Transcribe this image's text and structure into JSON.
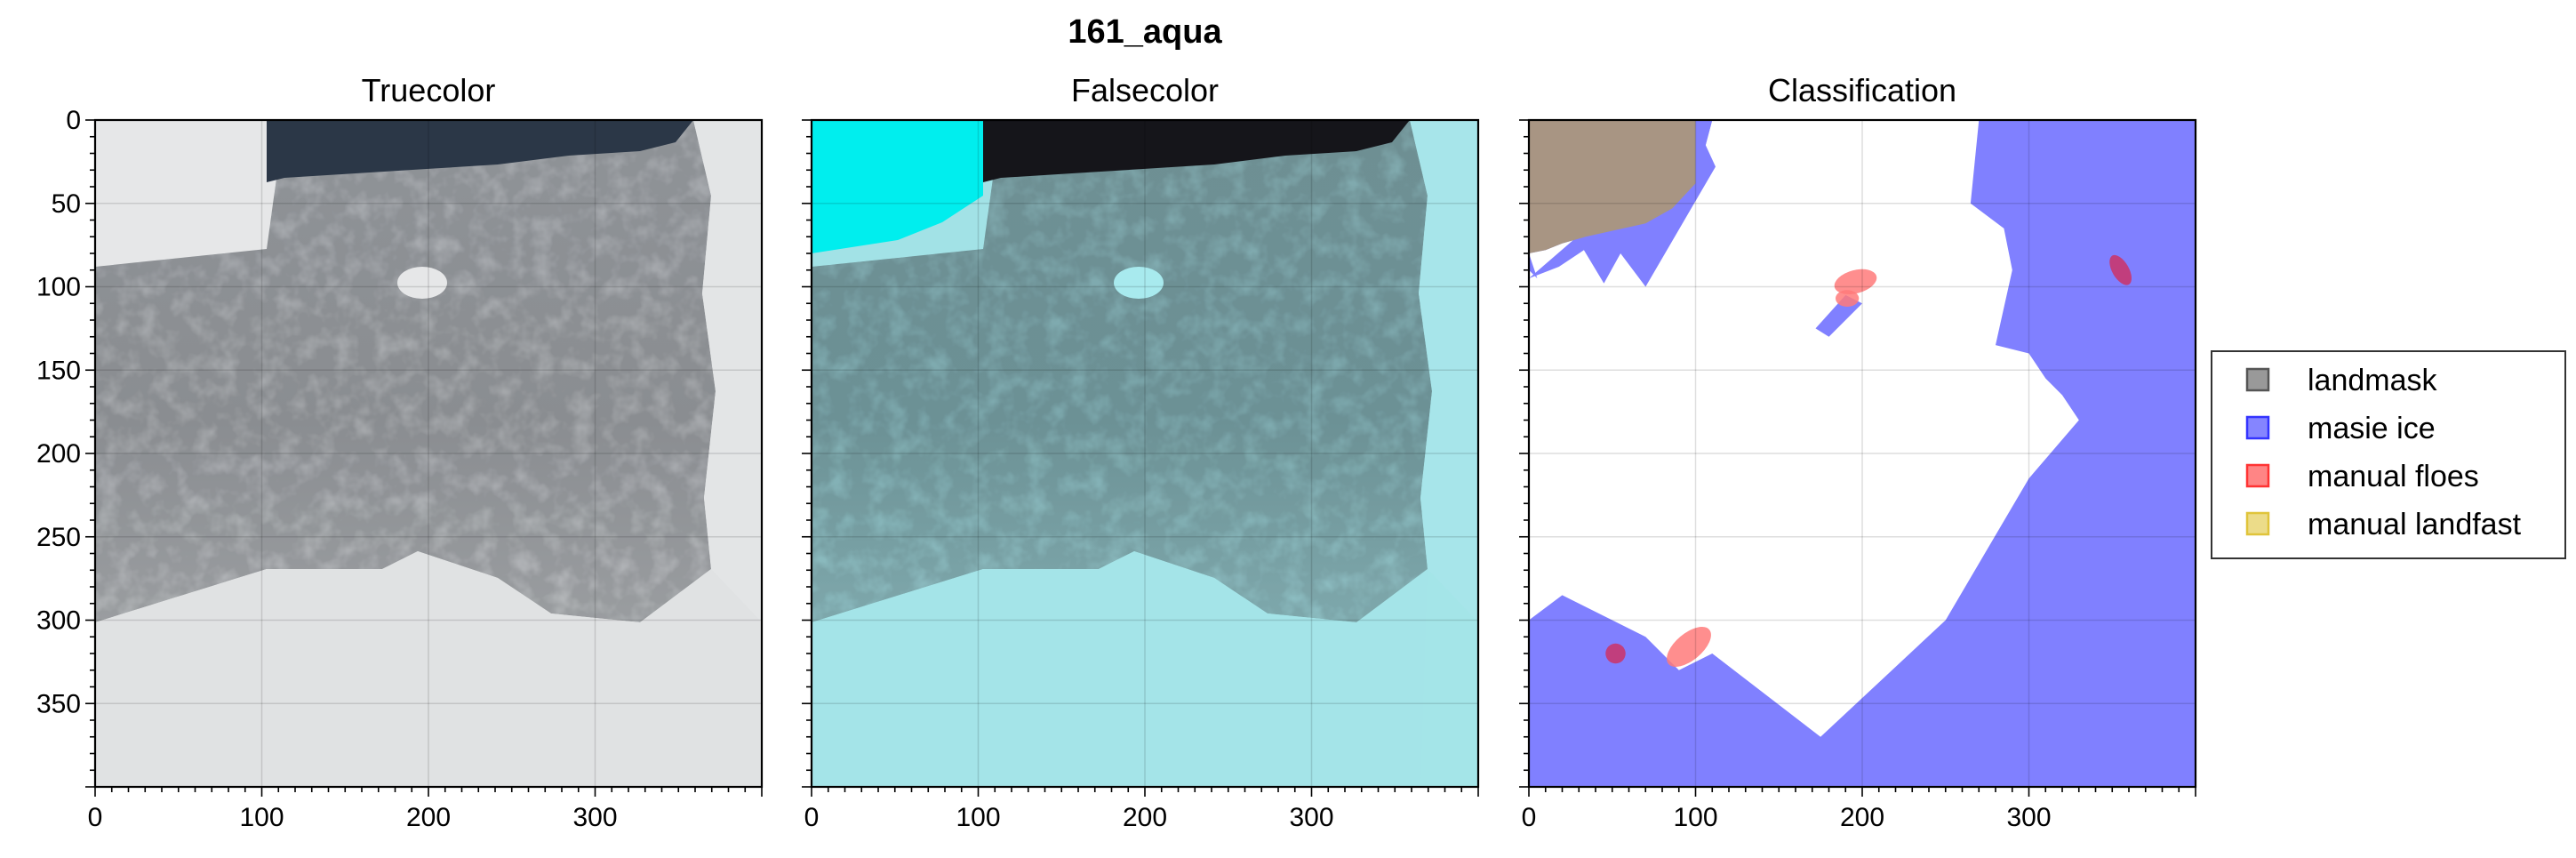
{
  "figure": {
    "suptitle": "161_aqua"
  },
  "chart_data": [
    {
      "type": "image",
      "title": "Truecolor",
      "xlim": [
        0,
        400
      ],
      "ylim": [
        400,
        0
      ],
      "xticks": [
        0,
        100,
        200,
        300
      ],
      "yticks": [
        0,
        50,
        100,
        150,
        200,
        250,
        300,
        350
      ],
      "grid": true,
      "colors": {
        "bright_ice": "#e6e7e8",
        "grey_ice": "#8d9094",
        "open_water": "#2b3747"
      }
    },
    {
      "type": "image",
      "title": "Falsecolor",
      "xlim": [
        0,
        400
      ],
      "ylim": [
        400,
        0
      ],
      "xticks": [
        0,
        100,
        200,
        300
      ],
      "yticks": [
        0,
        50,
        100,
        150,
        200,
        250,
        300,
        350
      ],
      "grid": true,
      "colors": {
        "bright_ice": "#00eeee",
        "cyan_ice": "#a2e2e6",
        "grey_ice": "#6f9094",
        "open_water": "#15151a"
      }
    },
    {
      "type": "image",
      "title": "Classification",
      "xlim": [
        0,
        400
      ],
      "ylim": [
        400,
        0
      ],
      "xticks": [
        0,
        100,
        200,
        300
      ],
      "yticks": [
        0,
        50,
        100,
        150,
        200,
        250,
        300,
        350
      ],
      "grid": true,
      "legend": {
        "position": "right",
        "entries": [
          {
            "label": "landmask",
            "color": "#555555"
          },
          {
            "label": "masie ice",
            "color": "#3333ff"
          },
          {
            "label": "manual floes",
            "color": "#ff3333"
          },
          {
            "label": "manual landfast",
            "color": "#e0c43a"
          }
        ]
      },
      "colors": {
        "land": "#a89583",
        "masie": "#8080ff",
        "floe": "#ff7a7a",
        "floe_overlap": "#cc3366",
        "unclassified": "#ffffff"
      },
      "regions": {
        "land": [
          [
            0,
            0
          ],
          [
            100,
            0
          ],
          [
            100,
            38
          ],
          [
            86,
            53
          ],
          [
            70,
            62
          ],
          [
            52,
            66
          ],
          [
            34,
            70
          ],
          [
            20,
            74
          ],
          [
            10,
            78
          ],
          [
            0,
            80
          ]
        ],
        "masie": [
          [
            [
              0,
              80
            ],
            [
              10,
              78
            ],
            [
              20,
              74
            ],
            [
              34,
              70
            ],
            [
              52,
              66
            ],
            [
              70,
              62
            ],
            [
              86,
              53
            ],
            [
              100,
              38
            ],
            [
              110,
              0
            ],
            [
              0,
              0
            ],
            [
              0,
              90
            ],
            [
              5,
              95
            ]
          ],
          [
            [
              110,
              0
            ],
            [
              106,
              15
            ],
            [
              112,
              28
            ],
            [
              70,
              100
            ],
            [
              55,
              80
            ],
            [
              45,
              98
            ],
            [
              33,
              78
            ],
            [
              18,
              88
            ],
            [
              0,
              95
            ],
            [
              0,
              400
            ],
            [
              400,
              400
            ],
            [
              400,
              0
            ],
            [
              270,
              0
            ],
            [
              265,
              50
            ],
            [
              285,
              65
            ],
            [
              290,
              90
            ],
            [
              280,
              135
            ],
            [
              300,
              140
            ],
            [
              310,
              155
            ],
            [
              320,
              165
            ],
            [
              330,
              180
            ],
            [
              300,
              215
            ],
            [
              250,
              300
            ],
            [
              175,
              370
            ],
            [
              110,
              320
            ],
            [
              90,
              330
            ],
            [
              70,
              310
            ],
            [
              50,
              300
            ],
            [
              20,
              285
            ],
            [
              0,
              300
            ],
            [
              0,
              95
            ]
          ]
        ],
        "small_masie_bar": [
          [
            190,
            105
          ],
          [
            200,
            110
          ],
          [
            180,
            130
          ],
          [
            172,
            125
          ]
        ],
        "floes": [
          {
            "cx": 196,
            "cy": 97,
            "rx": 13,
            "ry": 7,
            "rotate": -15
          },
          {
            "cx": 191,
            "cy": 107,
            "rx": 7,
            "ry": 5,
            "rotate": 0
          },
          {
            "cx": 96,
            "cy": 316,
            "rx": 16,
            "ry": 8,
            "rotate": -40
          },
          {
            "cx": 52,
            "cy": 320,
            "rx": 6,
            "ry": 6,
            "rotate": 0
          },
          {
            "cx": 355,
            "cy": 90,
            "rx": 10,
            "ry": 5,
            "rotate": 60
          }
        ]
      }
    }
  ]
}
